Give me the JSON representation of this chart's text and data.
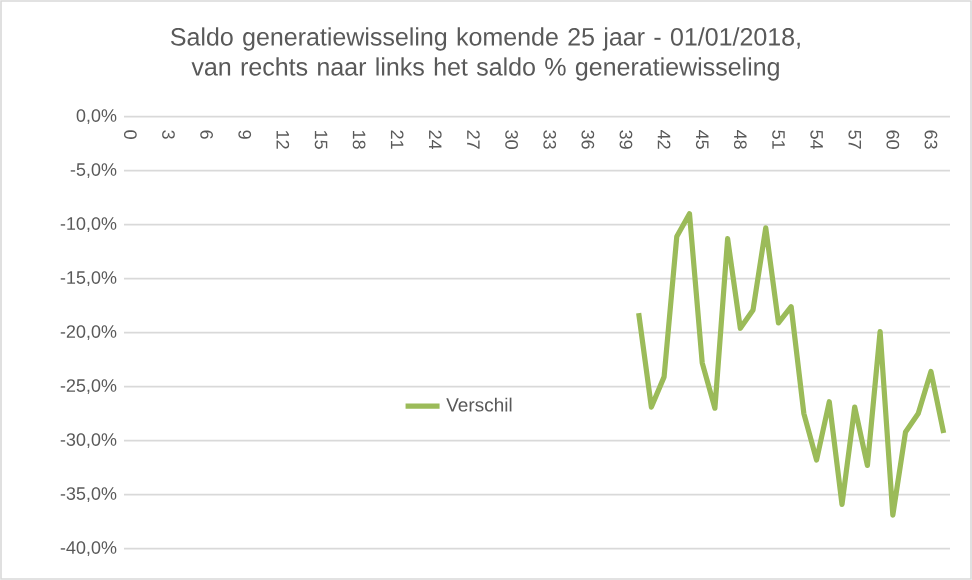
{
  "chart_data": {
    "type": "line",
    "title": "Saldo generatiewisseling komende 25 jaar - 01/01/2018, van rechts naar links  het saldo % generatiewisseling",
    "categories": [
      "0",
      null,
      null,
      "3",
      null,
      null,
      "6",
      null,
      null,
      "9",
      null,
      null,
      "12",
      null,
      null,
      "15",
      null,
      null,
      "18",
      null,
      null,
      "21",
      null,
      null,
      "24",
      null,
      null,
      "27",
      null,
      null,
      "30",
      null,
      null,
      "33",
      null,
      null,
      "36",
      null,
      null,
      "39",
      null,
      null,
      "42",
      null,
      null,
      "45",
      null,
      null,
      "48",
      null,
      null,
      "51",
      null,
      null,
      "54",
      null,
      null,
      "57",
      null,
      null,
      "60",
      null,
      null,
      "63",
      null
    ],
    "series": [
      {
        "name": "Verschil",
        "color": "#9bbb59",
        "values": [
          null,
          null,
          null,
          null,
          null,
          null,
          null,
          null,
          null,
          null,
          null,
          null,
          null,
          null,
          null,
          null,
          null,
          null,
          null,
          null,
          null,
          null,
          null,
          null,
          null,
          null,
          null,
          null,
          null,
          null,
          null,
          null,
          null,
          null,
          null,
          null,
          null,
          null,
          null,
          null,
          -18.2,
          -26.9,
          -24.1,
          -11.1,
          -9.0,
          -22.8,
          -27.0,
          -11.3,
          -19.6,
          -17.9,
          -10.3,
          -19.1,
          -17.6,
          -27.5,
          -31.8,
          -26.4,
          -35.9,
          -26.9,
          -32.3,
          -19.9,
          -36.9,
          -29.2,
          -27.5,
          -23.6,
          -29.3
        ]
      }
    ],
    "ylim": [
      -40,
      0
    ],
    "yticks": [
      {
        "value": 0,
        "label": "0,0%"
      },
      {
        "value": -5,
        "label": "-5,0%"
      },
      {
        "value": -10,
        "label": "-10,0%"
      },
      {
        "value": -15,
        "label": "-15,0%"
      },
      {
        "value": -20,
        "label": "-20,0%"
      },
      {
        "value": -25,
        "label": "-25,0%"
      },
      {
        "value": -30,
        "label": "-30,0%"
      },
      {
        "value": -35,
        "label": "-35,0%"
      },
      {
        "value": -40,
        "label": "-40,0%"
      }
    ],
    "grid": "y",
    "legend": "center",
    "marker": "none",
    "line_style": "solid"
  }
}
